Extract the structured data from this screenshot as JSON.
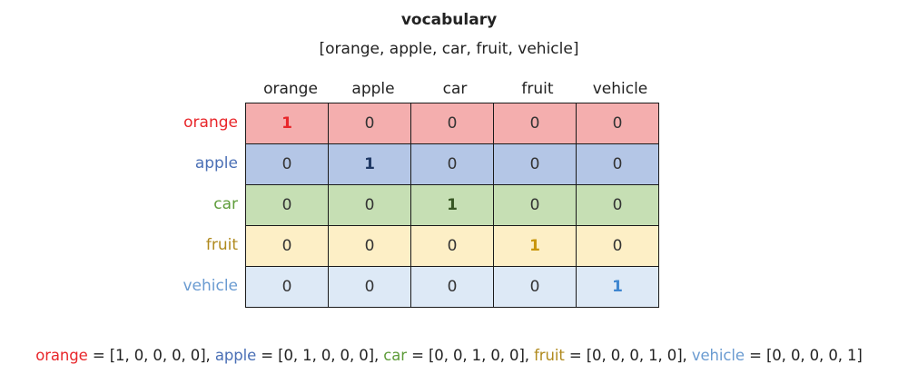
{
  "title": "vocabulary",
  "vocab_list": "[orange, apple, car, fruit, vehicle]",
  "columns": [
    "orange",
    "apple",
    "car",
    "fruit",
    "vehicle"
  ],
  "rows": [
    {
      "label": "orange",
      "label_color": "#e8262a",
      "fill": "#f4aeae",
      "hot_color": "#e8262a",
      "values": [
        "1",
        "0",
        "0",
        "0",
        "0"
      ]
    },
    {
      "label": "apple",
      "label_color": "#4a6fb5",
      "fill": "#b4c6e6",
      "hot_color": "#1f3864",
      "values": [
        "0",
        "1",
        "0",
        "0",
        "0"
      ]
    },
    {
      "label": "car",
      "label_color": "#5e9c3a",
      "fill": "#c6dfb4",
      "hot_color": "#375623",
      "values": [
        "0",
        "0",
        "1",
        "0",
        "0"
      ]
    },
    {
      "label": "fruit",
      "label_color": "#b08a1e",
      "fill": "#fdefc6",
      "hot_color": "#c8960c",
      "values": [
        "0",
        "0",
        "0",
        "1",
        "0"
      ]
    },
    {
      "label": "vehicle",
      "label_color": "#6a9bd1",
      "fill": "#dde9f6",
      "hot_color": "#3e86d0",
      "values": [
        "0",
        "0",
        "0",
        "0",
        "1"
      ]
    }
  ],
  "encodings": [
    {
      "word": "orange",
      "vector": "[1, 0, 0, 0, 0]"
    },
    {
      "word": "apple",
      "vector": "[0, 1, 0, 0, 0]"
    },
    {
      "word": "car",
      "vector": "[0, 0, 1, 0, 0]"
    },
    {
      "word": "fruit",
      "vector": "[0, 0, 0, 1, 0]"
    },
    {
      "word": "vehicle",
      "vector": "[0, 0, 0, 0, 1]"
    }
  ]
}
